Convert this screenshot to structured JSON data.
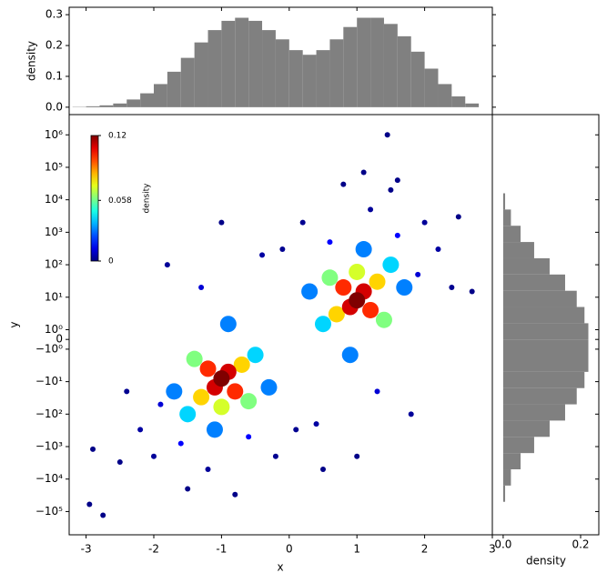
{
  "chart_data": [
    {
      "type": "scatter",
      "xlabel": "x",
      "ylabel": "y",
      "yscale": "symlog",
      "linthresh": 1,
      "linscale": 0.3,
      "xlim": [
        -3.25,
        3
      ],
      "xticks": [
        -3,
        -2,
        -1,
        0,
        1,
        2,
        3
      ],
      "ylim": [
        -520000,
        4200000
      ],
      "yticks": [
        {
          "value": 1000000,
          "label": "10⁶"
        },
        {
          "value": 100000,
          "label": "10⁵"
        },
        {
          "value": 10000,
          "label": "10⁴"
        },
        {
          "value": 1000,
          "label": "10³"
        },
        {
          "value": 100,
          "label": "10²"
        },
        {
          "value": 10,
          "label": "10¹"
        },
        {
          "value": 1,
          "label": "10⁰"
        },
        0,
        {
          "value": -1,
          "label": "−10⁰"
        },
        {
          "value": -10,
          "label": "−10¹"
        },
        {
          "value": -100,
          "label": "−10²"
        },
        {
          "value": -1000,
          "label": "−10³"
        },
        {
          "value": -10000,
          "label": "−10⁴"
        },
        {
          "value": -100000,
          "label": "−10⁵"
        }
      ],
      "x": [
        1.45,
        -2.95,
        -2.75,
        2.7,
        1.1,
        1.6,
        0.5,
        -2.9,
        -1.5,
        -0.8,
        -2.5,
        -1.0,
        1.5,
        0.8,
        2.5,
        1.0,
        -0.2,
        -2.4,
        0.2,
        2.4,
        -1.2,
        -2.0,
        -1.8,
        1.2,
        2.0,
        1.8,
        -2.2,
        -0.4,
        2.2,
        0.4,
        0.1,
        -0.1,
        -1.9,
        -1.3,
        1.9,
        1.3,
        -1.6,
        -0.6,
        1.6,
        0.6,
        -1.1,
        -0.9,
        -1.7,
        -0.3,
        1.1,
        0.9,
        1.7,
        0.3,
        -1.5,
        -0.5,
        1.5,
        0.5,
        -1.4,
        -0.6,
        1.4,
        0.6,
        -1.0,
        1.0,
        -1.3,
        -0.7,
        1.3,
        0.7,
        -0.8,
        -1.2,
        0.8,
        1.2,
        -0.9,
        -1.1,
        0.9,
        1.1,
        -1.0,
        1.0
      ],
      "y": [
        1000000,
        -60000,
        -130000,
        15,
        70000,
        40000,
        -5000,
        -1200,
        -20000,
        -30000,
        -3000,
        2000,
        20000,
        30000,
        3000,
        -2000,
        -2000,
        -20,
        2000,
        20,
        -5000,
        -2000,
        100,
        5000,
        2000,
        -100,
        -300,
        200,
        300,
        -200,
        -300,
        300,
        -50,
        20,
        50,
        -20,
        -800,
        -500,
        800,
        500,
        -300,
        1.5,
        -20,
        -15,
        300,
        -1.5,
        20,
        15,
        -100,
        -1.5,
        100,
        1.5,
        -2,
        -40,
        2,
        40,
        -60,
        60,
        -30,
        -3,
        30,
        3,
        -20,
        -4,
        20,
        4,
        -5,
        -15,
        5,
        15,
        -8,
        8
      ],
      "density": [
        0.001,
        0.001,
        0.001,
        0.001,
        0.001,
        0.001,
        0.001,
        0.001,
        0.001,
        0.001,
        0.001,
        0.001,
        0.001,
        0.001,
        0.001,
        0.001,
        0.002,
        0.002,
        0.002,
        0.002,
        0.003,
        0.003,
        0.003,
        0.003,
        0.003,
        0.003,
        0.004,
        0.004,
        0.004,
        0.004,
        0.002,
        0.002,
        0.01,
        0.01,
        0.01,
        0.01,
        0.015,
        0.015,
        0.015,
        0.015,
        0.03,
        0.03,
        0.03,
        0.03,
        0.03,
        0.03,
        0.03,
        0.03,
        0.04,
        0.04,
        0.04,
        0.04,
        0.06,
        0.06,
        0.06,
        0.06,
        0.07,
        0.07,
        0.08,
        0.08,
        0.08,
        0.08,
        0.1,
        0.1,
        0.1,
        0.1,
        0.11,
        0.11,
        0.11,
        0.11,
        0.12,
        0.12
      ],
      "colorbar": {
        "label": "density",
        "colormap": "jet",
        "lim": [
          0,
          0.12
        ],
        "ticks": [
          0,
          0.058,
          0.12
        ]
      }
    },
    {
      "type": "histogram",
      "orientation": "vertical",
      "ylabel": "density",
      "color": "#808080",
      "bins": [
        -3.2,
        -3.0,
        -2.8,
        -2.6,
        -2.4,
        -2.2,
        -2.0,
        -1.8,
        -1.6,
        -1.4,
        -1.2,
        -1.0,
        -0.8,
        -0.6,
        -0.4,
        -0.2,
        0.0,
        0.2,
        0.4,
        0.6,
        0.8,
        1.0,
        1.2,
        1.4,
        1.6,
        1.8,
        2.0,
        2.2,
        2.4,
        2.6,
        2.8
      ],
      "values": [
        0.001,
        0.003,
        0.006,
        0.012,
        0.025,
        0.045,
        0.075,
        0.115,
        0.16,
        0.21,
        0.25,
        0.28,
        0.29,
        0.28,
        0.25,
        0.22,
        0.185,
        0.17,
        0.185,
        0.22,
        0.26,
        0.29,
        0.29,
        0.27,
        0.23,
        0.18,
        0.125,
        0.075,
        0.035,
        0.012
      ],
      "ylim": [
        -0.024,
        0.324
      ],
      "yticks": [
        {
          "value": 0,
          "label": "0.0"
        },
        0.1,
        0.2,
        0.3
      ]
    },
    {
      "type": "histogram",
      "orientation": "horizontal",
      "xlabel": "density",
      "color": "#808080",
      "bins": [
        -50119,
        -15849,
        -5012,
        -1585,
        -501,
        -158,
        -50,
        -15.8,
        -5,
        -1.58,
        0,
        1.58,
        5,
        15.8,
        50,
        158,
        501,
        1585,
        5012,
        15849
      ],
      "values": [
        0.005,
        0.02,
        0.045,
        0.08,
        0.12,
        0.16,
        0.19,
        0.21,
        0.22,
        0.22,
        0.22,
        0.21,
        0.19,
        0.16,
        0.12,
        0.08,
        0.045,
        0.02,
        0.005
      ],
      "xlim": [
        -0.028,
        0.247
      ],
      "xticks": [
        {
          "value": 0,
          "label": "0.0"
        },
        0.2
      ]
    }
  ]
}
